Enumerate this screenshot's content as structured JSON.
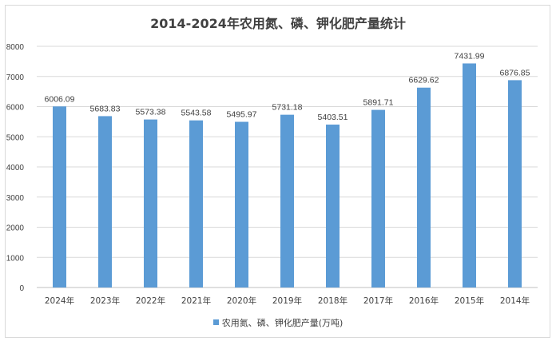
{
  "chart_data": {
    "type": "bar",
    "title": "2014-2024年农用氮、磷、钾化肥产量统计",
    "categories": [
      "2024年",
      "2023年",
      "2022年",
      "2021年",
      "2020年",
      "2019年",
      "2018年",
      "2017年",
      "2016年",
      "2015年",
      "2014年"
    ],
    "series": [
      {
        "name": "农用氮、磷、钾化肥产量(万吨)",
        "values": [
          6006.09,
          5683.83,
          5573.38,
          5543.58,
          5495.97,
          5731.18,
          5403.51,
          5891.71,
          6629.62,
          7431.99,
          6876.85
        ],
        "color": "#5b9bd5"
      }
    ],
    "data_labels": [
      "6006.09",
      "5683.83",
      "5573.38",
      "5543.58",
      "5495.97",
      "5731.18",
      "5403.51",
      "5891.71",
      "6629.62",
      "7431.99",
      "6876.85"
    ],
    "yticks": [
      "0",
      "1000",
      "2000",
      "3000",
      "4000",
      "5000",
      "6000",
      "7000",
      "8000"
    ],
    "ylim": [
      0,
      8000
    ],
    "grid": true,
    "legend_position": "bottom"
  }
}
